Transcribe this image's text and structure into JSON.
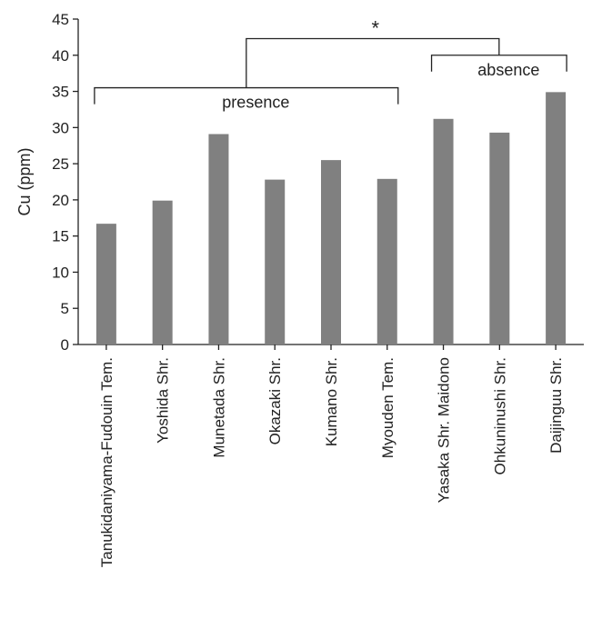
{
  "chart_data": {
    "type": "bar",
    "ylabel": "Cu (ppm)",
    "ylim": [
      0,
      45
    ],
    "yticks": [
      0,
      5,
      10,
      15,
      20,
      25,
      30,
      35,
      40,
      45
    ],
    "categories": [
      "Tanukidaniyama-Fudouin Tem.",
      "Yoshida Shr.",
      "Munetada Shr.",
      "Okazaki Shr.",
      "Kumano Shr.",
      "Myouden Tem.",
      "Yasaka Shr. Maidono",
      "Ohkuninushi Shr.",
      "Daijinguu Shr."
    ],
    "values": [
      16.7,
      19.9,
      29.1,
      22.8,
      25.5,
      22.9,
      31.2,
      29.3,
      34.9
    ],
    "bar_color": "#808080",
    "groups": [
      {
        "label": "presence",
        "from": 0,
        "to": 5,
        "y": 35.5
      },
      {
        "label": "absence",
        "from": 6,
        "to": 8,
        "y": 40.0
      }
    ],
    "significance": {
      "label": "*",
      "y": 42.3
    }
  }
}
